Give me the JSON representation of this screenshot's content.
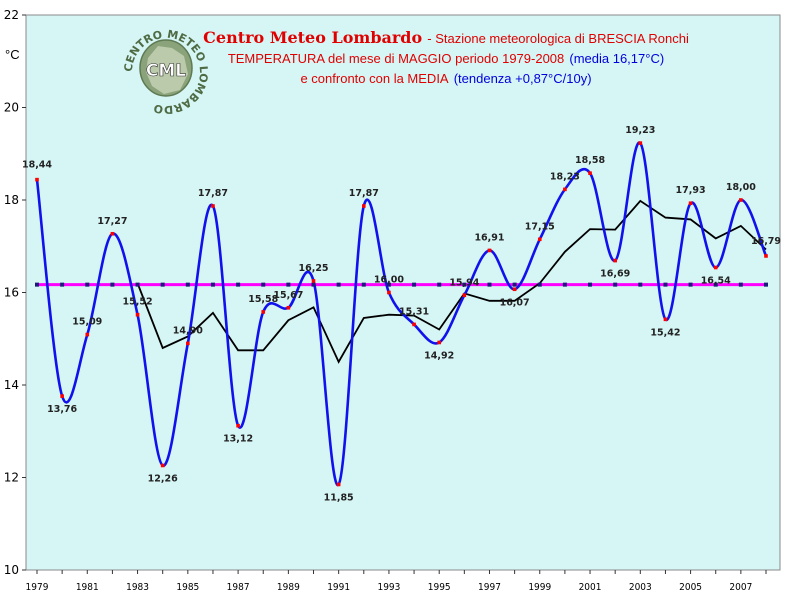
{
  "title": {
    "brand": "Centro Meteo Lombardo",
    "station": "- Stazione meteorologica di BRESCIA Ronchi",
    "line2_red": "TEMPERATURA del mese di MAGGIO periodo 1979-2008",
    "line2_blue": "(media 16,17°C)",
    "line3_red": "e confronto con la MEDIA",
    "line3_blue": "(tendenza +0,87°C/10y)"
  },
  "logo": {
    "ring_text": "CENTRO METEO LOMBARDO",
    "center_text": "CML"
  },
  "unit": "°C",
  "colors": {
    "background": "#d6f5f5",
    "series": "#1111ee",
    "average": "#ff00ff",
    "trend": "#000000",
    "point": "#ff0000"
  },
  "chart_data": {
    "type": "line",
    "x": [
      1979,
      1980,
      1981,
      1982,
      1983,
      1984,
      1985,
      1986,
      1987,
      1988,
      1989,
      1990,
      1991,
      1992,
      1993,
      1994,
      1995,
      1996,
      1997,
      1998,
      1999,
      2000,
      2001,
      2002,
      2003,
      2004,
      2005,
      2006,
      2007,
      2008
    ],
    "xticks": [
      "1979",
      "1981",
      "1983",
      "1985",
      "1987",
      "1989",
      "1991",
      "1993",
      "1995",
      "1997",
      "1999",
      "2001",
      "2003",
      "2005",
      "2007"
    ],
    "yticks": [
      "10",
      "12",
      "14",
      "16",
      "18",
      "20",
      "22"
    ],
    "ylim": [
      10,
      22
    ],
    "series": [
      {
        "values": [
          18.44,
          13.76,
          15.09,
          17.27,
          15.52,
          12.26,
          14.9,
          17.87,
          13.12,
          15.58,
          15.67,
          16.25,
          11.85,
          17.87,
          16.0,
          15.31,
          14.92,
          15.94,
          16.91,
          16.07,
          17.15,
          18.23,
          18.58,
          16.69,
          19.23,
          15.42,
          17.93,
          16.54,
          18.0,
          16.79
        ],
        "labels": [
          "18,44",
          "13,76",
          "15,09",
          "17,27",
          "15,52",
          "12,26",
          "14,90",
          "17,87",
          "13,12",
          "15,58",
          "15,67",
          "16,25",
          "11,85",
          "17,87",
          "16,00",
          "15,31",
          "14,92",
          "15,94",
          "16,91",
          "16,07",
          "17,15",
          "18,23",
          "18,58",
          "16,69",
          "19,23",
          "15,42",
          "17,93",
          "16,54",
          "18,00",
          "16,79"
        ]
      },
      {
        "values": [
          16.17,
          16.17,
          16.17,
          16.17,
          16.17,
          16.17,
          16.17,
          16.17,
          16.17,
          16.17,
          16.17,
          16.17,
          16.17,
          16.17,
          16.17,
          16.17,
          16.17,
          16.17,
          16.17,
          16.17,
          16.17,
          16.17,
          16.17,
          16.17,
          16.17,
          16.17,
          16.17,
          16.17,
          16.17,
          16.17
        ]
      },
      {
        "x": [
          1983,
          1984,
          1985,
          1986,
          1987,
          1988,
          1989,
          1990,
          1991,
          1992,
          1993,
          1994,
          1995,
          1996,
          1997,
          1998,
          1999,
          2000,
          2001,
          2002,
          2003,
          2004,
          2005,
          2006,
          2007,
          2008
        ],
        "values": [
          16.2,
          14.8,
          15.05,
          15.56,
          14.75,
          14.75,
          15.4,
          15.68,
          14.5,
          15.45,
          15.52,
          15.5,
          15.2,
          15.98,
          15.82,
          15.82,
          16.2,
          16.88,
          17.37,
          17.36,
          17.98,
          17.62,
          17.58,
          17.17,
          17.44,
          16.93
        ]
      }
    ]
  }
}
